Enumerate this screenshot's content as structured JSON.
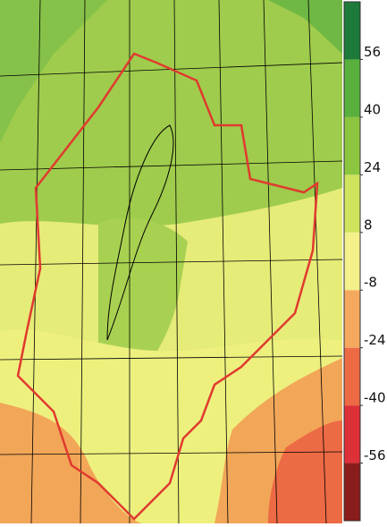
{
  "colorbar": {
    "lim": [
      -72,
      72
    ],
    "boundaries": [
      -72,
      -56,
      -40,
      -24,
      -8,
      8,
      24,
      40,
      56,
      72
    ],
    "colors": [
      "#8b1c1c",
      "#de3039",
      "#ec6a44",
      "#f5a95e",
      "#f4f08a",
      "#cfe35c",
      "#8cc540",
      "#5ab03c",
      "#1d7a3a"
    ],
    "ticks": [
      56,
      40,
      24,
      8,
      -8,
      -24,
      -40,
      -56
    ]
  }
}
